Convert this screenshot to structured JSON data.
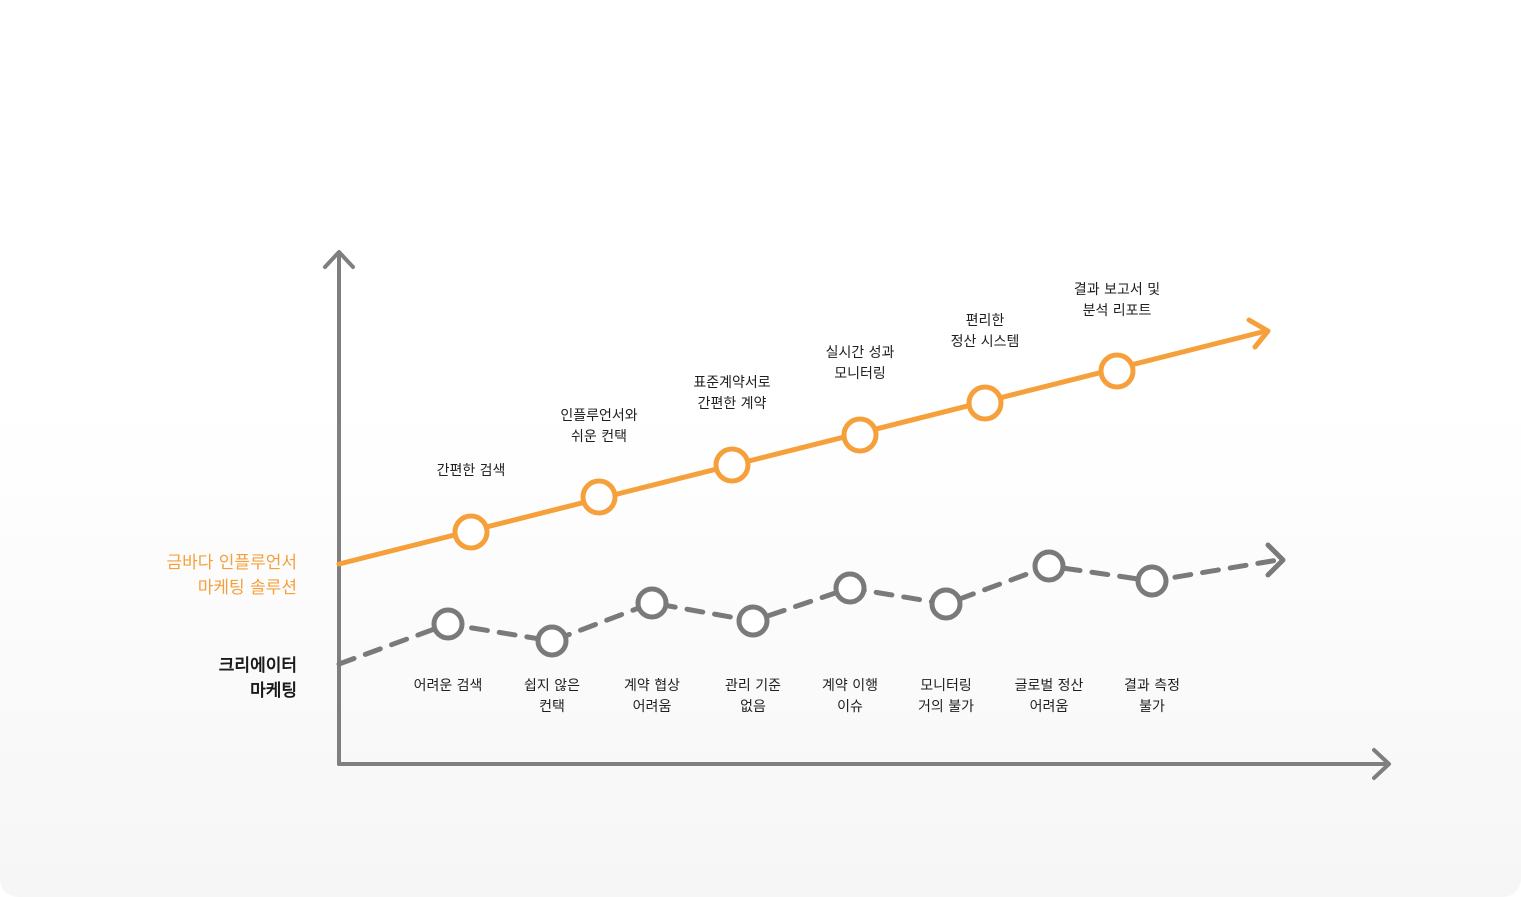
{
  "colors": {
    "solution": "#f6a03c",
    "creator": "#7a7a7a",
    "axis": "#7f7f7f",
    "text": "#1f1f1f"
  },
  "legend": {
    "solution": {
      "line1": "금바다 인플루언서",
      "line2": "마케팅 솔루션"
    },
    "creator": {
      "line1": "크리에이터",
      "line2": "마케팅"
    }
  },
  "solution_steps": [
    {
      "line1": "간편한 검색",
      "line2": ""
    },
    {
      "line1": "인플루언서와",
      "line2": "쉬운 컨택"
    },
    {
      "line1": "표준계약서로",
      "line2": "간편한 계약"
    },
    {
      "line1": "실시간 성과",
      "line2": "모니터링"
    },
    {
      "line1": "편리한",
      "line2": "정산 시스템"
    },
    {
      "line1": "결과 보고서 및",
      "line2": "분석 리포트"
    }
  ],
  "creator_issues": [
    {
      "line1": "어려운 검색",
      "line2": ""
    },
    {
      "line1": "쉽지 않은",
      "line2": "컨택"
    },
    {
      "line1": "계약 협상",
      "line2": "어려움"
    },
    {
      "line1": "관리 기준",
      "line2": "없음"
    },
    {
      "line1": "계약 이행",
      "line2": "이슈"
    },
    {
      "line1": "모니터링",
      "line2": "거의 불가"
    },
    {
      "line1": "글로벌 정산",
      "line2": "어려움"
    },
    {
      "line1": "결과 측정",
      "line2": "불가"
    }
  ]
}
